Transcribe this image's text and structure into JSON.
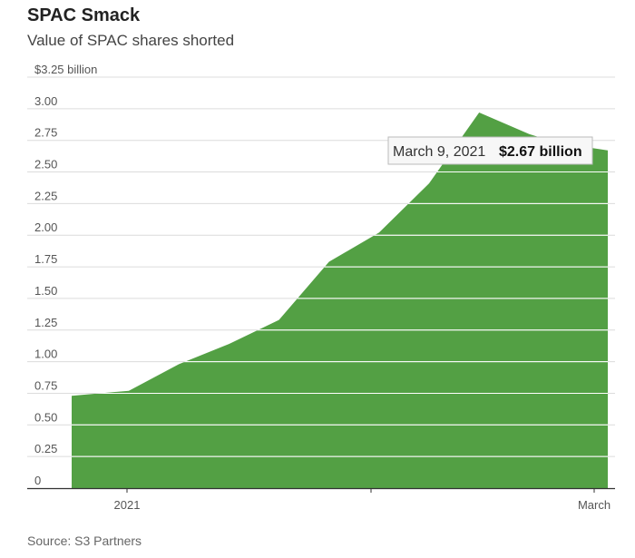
{
  "colors": {
    "area": "#53a044",
    "gridline": "#ffffff",
    "axis": "#333333"
  },
  "chart_data": {
    "type": "area",
    "title": "SPAC Smack",
    "subtitle": "Value of SPAC shares shorted",
    "source": "Source: S3 Partners",
    "y_tick_labels": [
      "0",
      "0.25",
      "0.50",
      "0.75",
      "1.00",
      "1.25",
      "1.50",
      "1.75",
      "2.00",
      "2.25",
      "2.50",
      "2.75",
      "3.00",
      "$3.25 billion"
    ],
    "y_ticks": [
      0,
      0.25,
      0.5,
      0.75,
      1.0,
      1.25,
      1.5,
      1.75,
      2.0,
      2.25,
      2.5,
      2.75,
      3.0,
      3.25
    ],
    "ylim": [
      0,
      3.25
    ],
    "x_tick_labels": [
      "2021",
      "March"
    ],
    "xlim": [
      "2020-12-24",
      "2021-03-09"
    ],
    "grid": true,
    "series": [
      {
        "x": [
          "2020-12-24",
          "2021-01-01",
          "2021-01-08",
          "2021-01-15",
          "2021-01-22",
          "2021-01-29",
          "2021-02-05",
          "2021-02-12",
          "2021-02-19",
          "2021-02-26",
          "2021-03-02",
          "2021-03-09"
        ],
        "values": [
          0.73,
          0.77,
          0.98,
          1.14,
          1.33,
          1.79,
          2.02,
          2.41,
          2.97,
          2.8,
          2.73,
          2.67
        ]
      }
    ],
    "annotation": {
      "date_label": "March 9, 2021",
      "value_label": "$2.67 billion"
    }
  }
}
